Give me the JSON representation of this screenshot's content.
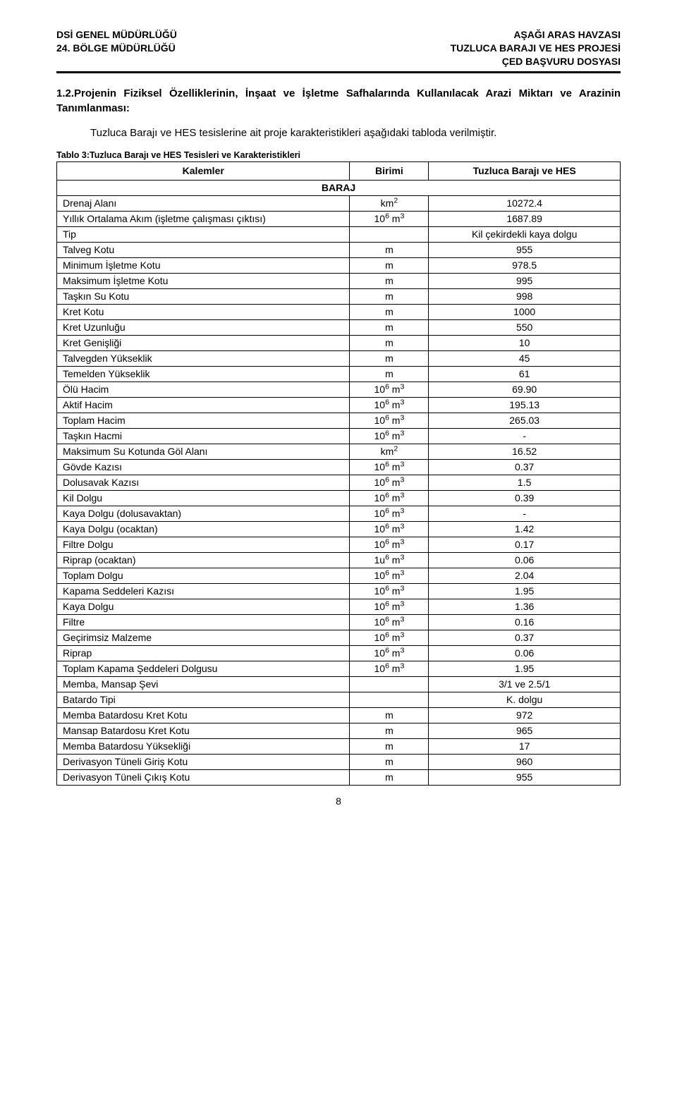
{
  "header": {
    "left_line_1": "DSİ GENEL MÜDÜRLÜĞÜ",
    "left_line_2": "24. BÖLGE MÜDÜRLÜĞÜ",
    "right_line_1": "AŞAĞI ARAS HAVZASI",
    "right_line_2": "TUZLUCA BARAJI VE HES PROJESİ",
    "right_line_3": "ÇED BAŞVURU DOSYASI"
  },
  "section_heading": "1.2.Projenin Fiziksel Özelliklerinin, İnşaat ve İşletme Safhalarında Kullanılacak Arazi Miktarı ve Arazinin Tanımlanması:",
  "intro_text": "Tuzluca Barajı ve HES tesislerine ait proje karakteristikleri aşağıdaki tabloda verilmiştir.",
  "table_caption": "Tablo 3:Tuzluca Barajı ve HES Tesisleri ve Karakteristikleri",
  "columns": {
    "c1": "Kalemler",
    "c2": "Birimi",
    "c3": "Tuzluca Barajı ve HES"
  },
  "section_label": "BARAJ",
  "rows": [
    {
      "label": "Drenaj Alanı",
      "unit_html": "km<sup>2</sup>",
      "value": "10272.4"
    },
    {
      "label": "Yıllık Ortalama Akım (işletme çalışması çıktısı)",
      "unit_html": "10<sup>6</sup> m<sup>3</sup>",
      "value": "1687.89"
    },
    {
      "label": "Tip",
      "unit_html": "",
      "value": "Kil çekirdekli kaya dolgu"
    },
    {
      "label": "Talveg Kotu",
      "unit_html": "m",
      "value": "955"
    },
    {
      "label": "Minimum İşletme Kotu",
      "unit_html": "m",
      "value": "978.5"
    },
    {
      "label": "Maksimum İşletme Kotu",
      "unit_html": "m",
      "value": "995"
    },
    {
      "label": "Taşkın Su Kotu",
      "unit_html": "m",
      "value": "998"
    },
    {
      "label": "Kret Kotu",
      "unit_html": "m",
      "value": "1000"
    },
    {
      "label": "Kret Uzunluğu",
      "unit_html": "m",
      "value": "550"
    },
    {
      "label": "Kret Genişliği",
      "unit_html": "m",
      "value": "10"
    },
    {
      "label": "Talvegden Yükseklik",
      "unit_html": "m",
      "value": "45"
    },
    {
      "label": "Temelden Yükseklik",
      "unit_html": "m",
      "value": "61"
    },
    {
      "label": "Ölü Hacim",
      "unit_html": "10<sup>6</sup> m<sup>3</sup>",
      "value": "69.90"
    },
    {
      "label": "Aktif Hacim",
      "unit_html": "10<sup>6</sup> m<sup>3</sup>",
      "value": "195.13"
    },
    {
      "label": "Toplam Hacim",
      "unit_html": "10<sup>6</sup> m<sup>3</sup>",
      "value": "265.03"
    },
    {
      "label": "Taşkın Hacmi",
      "unit_html": "10<sup>6</sup> m<sup>3</sup>",
      "value": "-"
    },
    {
      "label": "Maksimum Su Kotunda Göl Alanı",
      "unit_html": "km<sup>2</sup>",
      "value": "16.52"
    },
    {
      "label": "Gövde Kazısı",
      "unit_html": "10<sup>6</sup> m<sup>3</sup>",
      "value": "0.37"
    },
    {
      "label": "Dolusavak Kazısı",
      "unit_html": "10<sup>6</sup> m<sup>3</sup>",
      "value": "1.5"
    },
    {
      "label": "Kil Dolgu",
      "unit_html": "10<sup>6</sup> m<sup>3</sup>",
      "value": "0.39"
    },
    {
      "label": "Kaya Dolgu (dolusavaktan)",
      "unit_html": "10<sup>6</sup> m<sup>3</sup>",
      "value": "-"
    },
    {
      "label": "Kaya Dolgu (ocaktan)",
      "unit_html": "10<sup>6</sup> m<sup>3</sup>",
      "value": "1.42"
    },
    {
      "label": "Filtre Dolgu",
      "unit_html": "10<sup>6</sup> m<sup>3</sup>",
      "value": "0.17"
    },
    {
      "label": "Riprap (ocaktan)",
      "unit_html": "1u<sup>6</sup> m<sup>3</sup>",
      "value": "0.06"
    },
    {
      "label": "Toplam Dolgu",
      "unit_html": "10<sup>6</sup> m<sup>3</sup>",
      "value": "2.04"
    },
    {
      "label": "Kapama Seddeleri Kazısı",
      "unit_html": "10<sup>6</sup> m<sup>3</sup>",
      "value": "1.95"
    },
    {
      "label": "Kaya Dolgu",
      "unit_html": "10<sup>6</sup> m<sup>3</sup>",
      "value": "1.36"
    },
    {
      "label": "Filtre",
      "unit_html": "10<sup>6</sup> m<sup>3</sup>",
      "value": "0.16"
    },
    {
      "label": "Geçirimsiz Malzeme",
      "unit_html": "10<sup>6</sup> m<sup>3</sup>",
      "value": "0.37"
    },
    {
      "label": "Riprap",
      "unit_html": "10<sup>6</sup> m<sup>3</sup>",
      "value": "0.06"
    },
    {
      "label": "Toplam Kapama Şeddeleri Dolgusu",
      "unit_html": "10<sup>6</sup> m<sup>3</sup>",
      "value": "1.95"
    },
    {
      "label": "Memba, Mansap Şevi",
      "unit_html": "",
      "value": "3/1 ve 2.5/1"
    },
    {
      "label": "Batardo Tipi",
      "unit_html": "",
      "value": "K. dolgu"
    },
    {
      "label": "Memba Batardosu Kret Kotu",
      "unit_html": "m",
      "value": "972"
    },
    {
      "label": "Mansap Batardosu Kret Kotu",
      "unit_html": "m",
      "value": "965"
    },
    {
      "label": "Memba Batardosu Yüksekliği",
      "unit_html": "m",
      "value": "17"
    },
    {
      "label": "Derivasyon Tüneli Giriş Kotu",
      "unit_html": "m",
      "value": "960"
    },
    {
      "label": "Derivasyon Tüneli Çıkış Kotu",
      "unit_html": "m",
      "value": "955"
    }
  ],
  "page_number": "8"
}
